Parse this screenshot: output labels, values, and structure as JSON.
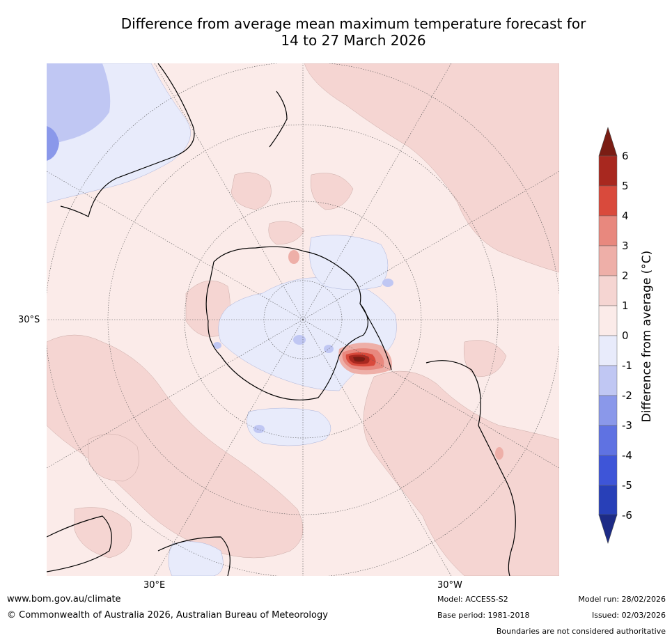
{
  "title": {
    "line1": "Difference from average mean maximum temperature forecast for",
    "line2": "14 to 27 March 2026"
  },
  "map": {
    "projection_center": "South Pole",
    "lat_label": "30°S",
    "lon_labels": [
      "30°E",
      "30°W"
    ]
  },
  "colorbar": {
    "title": "Difference from average (°C)",
    "ticks": [
      "6",
      "5",
      "4",
      "3",
      "2",
      "1",
      "0",
      "-1",
      "-2",
      "-3",
      "-4",
      "-5",
      "-6"
    ],
    "colors": {
      "gt6": "#7a1d14",
      "5_6": "#a8281f",
      "4_5": "#d94a3c",
      "3_4": "#e8887e",
      "2_3": "#eeafa8",
      "1_2": "#f5d5d2",
      "0_1": "#fbebe9",
      "m1_0": "#e8ebfb",
      "m2_m1": "#c0c7f3",
      "m3_m2": "#8a98ea",
      "m4_m3": "#5f72e2",
      "m5_m4": "#3e55d8",
      "m6_m5": "#2840b8",
      "lt_m6": "#1d2b86"
    }
  },
  "footer": {
    "url": "www.bom.gov.au/climate",
    "copyright": "© Commonwealth of Australia 2026, Australian Bureau of Meteorology",
    "model": "Model: ACCESS-S2",
    "base_period": "Base period: 1981-2018",
    "model_run": "Model run: 28/02/2026",
    "issued": "Issued: 02/03/2026",
    "disclaimer": "Boundaries are not considered authoritative"
  }
}
